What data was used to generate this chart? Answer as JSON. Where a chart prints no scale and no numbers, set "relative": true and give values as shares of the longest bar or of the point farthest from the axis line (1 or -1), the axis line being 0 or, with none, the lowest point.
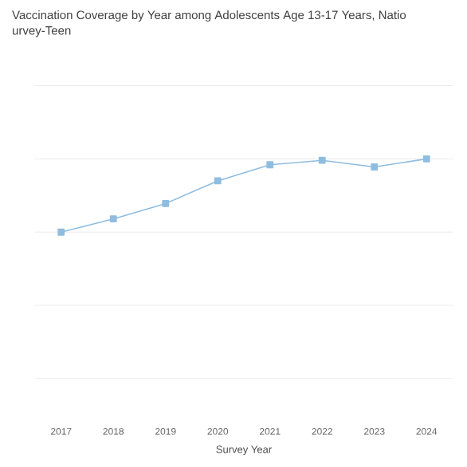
{
  "chart_data": {
    "type": "line",
    "title": "Vaccination Coverage by Year among Adolescents Age 13-17 Years, Natio",
    "subtitle": "urvey-Teen",
    "xlabel": "Survey Year",
    "categories": [
      "2017",
      "2018",
      "2019",
      "2020",
      "2021",
      "2022",
      "2023",
      "2024"
    ],
    "series": [
      {
        "color": "#8fbde0",
        "values": [
          0,
          0.18,
          0.39,
          0.7,
          0.92,
          0.98,
          0.89,
          1
        ]
      }
    ],
    "relative": true,
    "grid": "y",
    "marker": "square"
  }
}
